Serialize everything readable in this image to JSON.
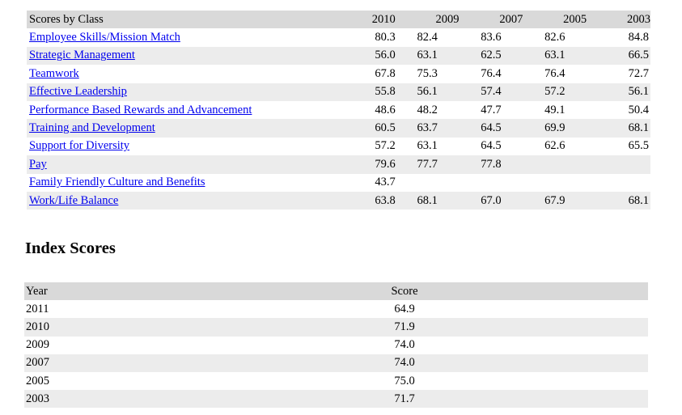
{
  "classes_table": {
    "header_label": "Scores by Class",
    "years": [
      "2010",
      "2009",
      "2007",
      "2005",
      "2003"
    ],
    "rows": [
      {
        "label": "Employee Skills/Mission Match",
        "values": [
          "80.3",
          "82.4",
          "83.6",
          "82.6",
          "84.8"
        ]
      },
      {
        "label": "Strategic Management",
        "values": [
          "56.0",
          "63.1",
          "62.5",
          "63.1",
          "66.5"
        ]
      },
      {
        "label": "Teamwork",
        "values": [
          "67.8",
          "75.3",
          "76.4",
          "76.4",
          "72.7"
        ]
      },
      {
        "label": "Effective Leadership",
        "values": [
          "55.8",
          "56.1",
          "57.4",
          "57.2",
          "56.1"
        ]
      },
      {
        "label": "Performance Based Rewards and Advancement",
        "values": [
          "48.6",
          "48.2",
          "47.7",
          "49.1",
          "50.4"
        ]
      },
      {
        "label": "Training and Development",
        "values": [
          "60.5",
          "63.7",
          "64.5",
          "69.9",
          "68.1"
        ]
      },
      {
        "label": "Support for Diversity",
        "values": [
          "57.2",
          "63.1",
          "64.5",
          "62.6",
          "65.5"
        ]
      },
      {
        "label": "Pay",
        "values": [
          "79.6",
          "77.7",
          "77.8",
          "",
          ""
        ]
      },
      {
        "label": "Family Friendly Culture and Benefits",
        "values": [
          "43.7",
          "",
          "",
          "",
          ""
        ]
      },
      {
        "label": "Work/Life Balance",
        "values": [
          "63.8",
          "68.1",
          "67.0",
          "67.9",
          "68.1"
        ]
      }
    ]
  },
  "index_section": {
    "title": "Index Scores",
    "col_year": "Year",
    "col_score": "Score",
    "rows": [
      {
        "year": "2011",
        "score": "64.9"
      },
      {
        "year": "2010",
        "score": "71.9"
      },
      {
        "year": "2009",
        "score": "74.0"
      },
      {
        "year": "2007",
        "score": "74.0"
      },
      {
        "year": "2005",
        "score": "75.0"
      },
      {
        "year": "2003",
        "score": "71.7"
      }
    ]
  }
}
